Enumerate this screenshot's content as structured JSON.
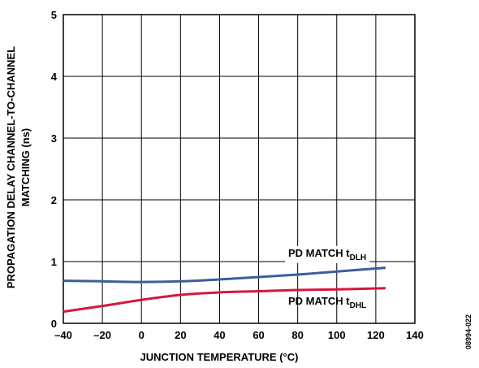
{
  "chart_data": {
    "type": "line",
    "xlabel": "JUNCTION TEMPERATURE (°C)",
    "ylabel_line1": "PROPAGATION DELAY CHANNEL-TO-CHANNEL",
    "ylabel_line2": "MATCHING (ns)",
    "xlim": [
      -40,
      140
    ],
    "ylim": [
      0,
      5
    ],
    "x_ticks": [
      -40,
      -20,
      0,
      20,
      40,
      60,
      80,
      100,
      120,
      140
    ],
    "x_tick_labels": [
      "–40",
      "–20",
      "0",
      "20",
      "40",
      "60",
      "80",
      "100",
      "120",
      "140"
    ],
    "y_ticks": [
      0,
      1,
      2,
      3,
      4,
      5
    ],
    "y_tick_labels": [
      "0",
      "1",
      "2",
      "3",
      "4",
      "5"
    ],
    "grid": true,
    "series": [
      {
        "label_main": "PD MATCH t",
        "label_sub": "DLH",
        "color": "#3a5f9a",
        "x": [
          -40,
          -20,
          0,
          20,
          40,
          60,
          80,
          100,
          125
        ],
        "y": [
          0.69,
          0.68,
          0.67,
          0.68,
          0.71,
          0.75,
          0.79,
          0.84,
          0.9
        ]
      },
      {
        "label_main": "PD MATCH t",
        "label_sub": "DHL",
        "color": "#d6173c",
        "x": [
          -40,
          -20,
          0,
          20,
          40,
          60,
          80,
          100,
          125
        ],
        "y": [
          0.19,
          0.28,
          0.38,
          0.46,
          0.5,
          0.52,
          0.54,
          0.55,
          0.57
        ]
      }
    ],
    "figure_id": "08994-022"
  }
}
